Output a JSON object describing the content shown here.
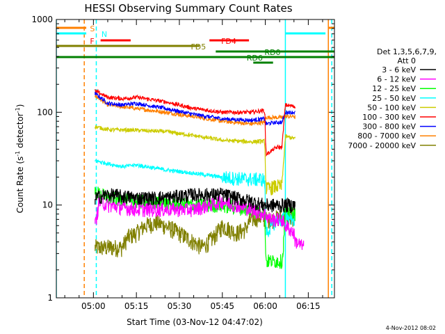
{
  "chart_data": {
    "type": "line",
    "title": "HESSI Observing Summary Count Rates",
    "xlabel": "Start Time (03-Nov-12 04:47:02)",
    "ylabel_prefix": "Count Rate (s",
    "ylabel_exp": "-1",
    "ylabel_suffix": " detector",
    "ylabel_exp2": "-1",
    "ylabel_close": ")",
    "yscale": "log",
    "ylim": [
      1,
      1000
    ],
    "xlim_minutes": [
      -12.95,
      84.13
    ],
    "y_ticks": [
      1,
      10,
      100,
      1000
    ],
    "y_tick_labels": [
      "1",
      "10",
      "100",
      "1000"
    ],
    "x_ticks_minutes": [
      0,
      15,
      30,
      45,
      60,
      75
    ],
    "x_tick_labels": [
      "05:00",
      "05:15",
      "05:30",
      "05:45",
      "06:00",
      "06:15"
    ],
    "footer_timestamp": "4-Nov-2012 08:02",
    "legend": {
      "header_line1": "Det 1,3,5,6,7,9,",
      "header_line2": "Att 0",
      "placement": "right"
    },
    "series": [
      {
        "name": "3 - 6 keV",
        "color": "#000000",
        "kind": "band",
        "x": [
          0.6,
          5,
          15,
          25,
          35,
          45,
          55,
          59.8,
          60.5,
          64,
          65.8,
          67,
          70,
          70.5
        ],
        "y": [
          12,
          13,
          12,
          12,
          13,
          13,
          11,
          10,
          10,
          10,
          10,
          10,
          10,
          10
        ]
      },
      {
        "name": "6 - 12 keV",
        "color": "#ff00ff",
        "kind": "band",
        "x": [
          0.6,
          2,
          5,
          15,
          25,
          35,
          45,
          50,
          55,
          59.8,
          62,
          65.8,
          67,
          70,
          70.5,
          71,
          73.5
        ],
        "y": [
          6,
          11,
          10,
          9,
          9,
          9,
          11,
          10,
          9,
          8,
          7,
          7,
          6,
          5,
          4,
          4,
          3.5
        ]
      },
      {
        "name": "12 - 25 keV",
        "color": "#00ff00",
        "kind": "band",
        "x": [
          0.6,
          5,
          15,
          25,
          35,
          45,
          55,
          59.8,
          60.2,
          64,
          66,
          67,
          70,
          70.5
        ],
        "y": [
          14,
          12,
          11,
          10.5,
          10,
          10,
          9,
          8.5,
          2.5,
          2.5,
          2.5,
          9,
          8.5,
          8
        ]
      },
      {
        "name": "25 - 50 keV",
        "color": "#00ffff",
        "kind": "band",
        "x": [
          0.6,
          5,
          10,
          15,
          25,
          35,
          45,
          55,
          59.8,
          60.2,
          64,
          65.8,
          67,
          70.5
        ],
        "y": [
          30,
          28,
          26,
          27,
          24,
          22,
          20,
          19,
          19,
          5,
          7,
          7,
          8,
          7
        ]
      },
      {
        "name": "50 - 100 keV",
        "color": "#cccc00",
        "kind": "band",
        "x": [
          0.6,
          5,
          15,
          25,
          35,
          45,
          55,
          59.8,
          60.2,
          64,
          65.8,
          67,
          70.5
        ],
        "y": [
          70,
          65,
          64,
          62,
          56,
          50,
          48,
          49,
          15,
          16,
          16,
          55,
          52
        ]
      },
      {
        "name": "100 - 300 keV",
        "color": "#ff0000",
        "kind": "band",
        "x": [
          0.6,
          5,
          10,
          15,
          25,
          35,
          45,
          55,
          59.8,
          60.2,
          64,
          65.8,
          67,
          70.5
        ],
        "y": [
          170,
          145,
          140,
          145,
          130,
          110,
          100,
          100,
          105,
          35,
          42,
          42,
          120,
          115
        ]
      },
      {
        "name": "300 - 800 keV",
        "color": "#0000ff",
        "kind": "band",
        "x": [
          0.6,
          5,
          10,
          15,
          25,
          35,
          45,
          55,
          59.8,
          60.2,
          64,
          65.8,
          67,
          70.5
        ],
        "y": [
          160,
          125,
          120,
          125,
          110,
          95,
          85,
          82,
          85,
          75,
          78,
          78,
          100,
          100
        ]
      },
      {
        "name": "800 - 7000 keV",
        "color": "#ff8000",
        "kind": "band",
        "x": [
          0.6,
          5,
          15,
          25,
          35,
          45,
          55,
          59.8,
          60.2,
          64,
          65.8,
          67,
          70.5
        ],
        "y": [
          150,
          120,
          110,
          100,
          90,
          80,
          75,
          78,
          88,
          88,
          88,
          90,
          90
        ]
      },
      {
        "name": "7000 - 20000 keV",
        "color": "#808000",
        "kind": "stair",
        "x": [
          0.6,
          5,
          10,
          12,
          15,
          18,
          22,
          25,
          30,
          35,
          38,
          42,
          45,
          50,
          53,
          55,
          58,
          60,
          62,
          66,
          67,
          69,
          70.5
        ],
        "y": [
          3.5,
          3.5,
          3.5,
          4.5,
          5,
          6,
          6.5,
          6,
          5,
          4,
          3.5,
          4.5,
          6,
          5,
          5.5,
          7,
          7.5,
          7,
          7,
          7.5,
          7.5,
          7,
          8
        ]
      }
    ],
    "flags": [
      {
        "label": "S",
        "color": "#ff8000",
        "x0": -12.95,
        "x1": -2.5,
        "y": 40,
        "label_x": -1.2
      },
      {
        "label": "N",
        "color": "#00ffff",
        "x0": -12.95,
        "x1": -2.5,
        "y": 48,
        "label_x": 2.8
      },
      {
        "label": "F",
        "color": "#ff0000",
        "x0": 2.5,
        "x1": 13.0,
        "y": 58,
        "label_x": -1.2
      },
      {
        "label": "FD4",
        "color": "#ff0000",
        "x0": 40.5,
        "x1": 54.3,
        "y": 58,
        "label_x": 44.6
      },
      {
        "label": "FD5",
        "color": "#808000",
        "x0": -12.95,
        "x1": 37.0,
        "y": 66,
        "label_x": 34.0
      },
      {
        "label": "RD0",
        "color": "#008000",
        "x0": 42.7,
        "x1": 84.13,
        "y": 74,
        "label_x": 59.7
      },
      {
        "label": "RD6",
        "color": "#008000",
        "x0": -12.95,
        "x1": 84.13,
        "y": 82,
        "label_x": 53.5
      },
      {
        "label": "",
        "color": "#008000",
        "x0": 55.8,
        "x1": 62.7,
        "y": 90,
        "label_x": 0
      },
      {
        "label": "",
        "color": "#00ffff",
        "x0": 67.0,
        "x1": 81.0,
        "y": 48,
        "label_x": 0
      },
      {
        "label": "",
        "color": "#ff8000",
        "x0": 82.0,
        "x1": 84.13,
        "y": 40,
        "label_x": 0
      }
    ],
    "vlines": [
      {
        "x": -12.95,
        "color": "#00ffff",
        "style": "solid"
      },
      {
        "x": -3.2,
        "color": "#ff8000",
        "style": "dashed"
      },
      {
        "x": 1.0,
        "color": "#00ffff",
        "style": "dashed"
      },
      {
        "x": 67.0,
        "color": "#00ffff",
        "style": "solid"
      },
      {
        "x": 82.0,
        "color": "#ff8000",
        "style": "solid"
      },
      {
        "x": 83.2,
        "color": "#00ffff",
        "style": "dashed"
      }
    ]
  }
}
